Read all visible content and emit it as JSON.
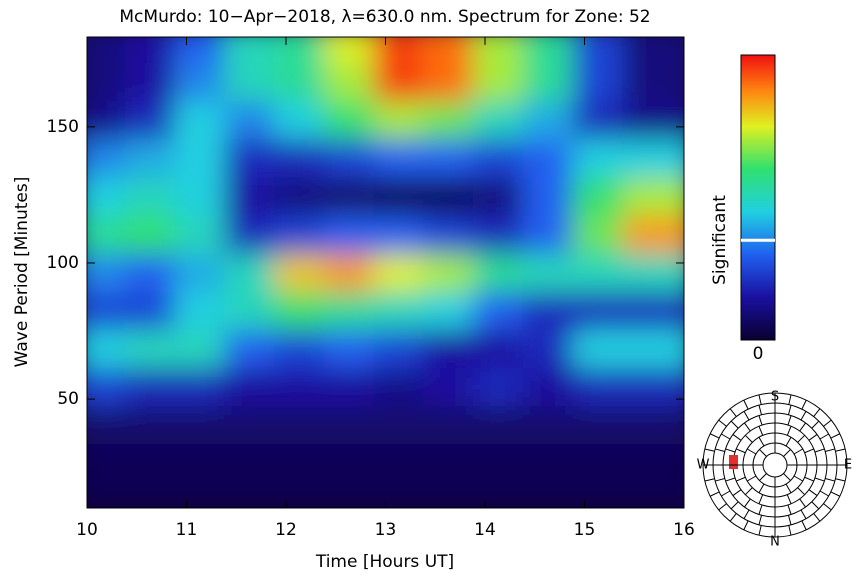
{
  "chart_data": {
    "type": "heatmap",
    "title": "McMurdo: 10−Apr−2018, λ=630.0 nm. Spectrum for Zone: 52",
    "x_label": "Time [Hours UT]",
    "y_label": "Wave Period [Minutes]",
    "x": [
      10.25,
      10.75,
      11.25,
      11.75,
      12.25,
      12.75,
      13.25,
      13.75,
      14.25,
      14.75,
      15.25,
      15.75
    ],
    "y": [
      176,
      162,
      148,
      134,
      120,
      106,
      92,
      78,
      64,
      50,
      36,
      22
    ],
    "z": [
      [
        0.1,
        0.15,
        0.3,
        0.5,
        0.55,
        0.75,
        0.95,
        0.9,
        0.7,
        0.55,
        0.25,
        0.1
      ],
      [
        0.1,
        0.15,
        0.35,
        0.5,
        0.55,
        0.7,
        0.95,
        0.9,
        0.7,
        0.55,
        0.25,
        0.1
      ],
      [
        0.12,
        0.2,
        0.45,
        0.35,
        0.45,
        0.6,
        0.7,
        0.65,
        0.5,
        0.4,
        0.2,
        0.12
      ],
      [
        0.35,
        0.4,
        0.45,
        0.2,
        0.2,
        0.25,
        0.3,
        0.3,
        0.25,
        0.3,
        0.45,
        0.45
      ],
      [
        0.45,
        0.5,
        0.45,
        0.15,
        0.1,
        0.08,
        0.05,
        0.05,
        0.1,
        0.3,
        0.6,
        0.7
      ],
      [
        0.55,
        0.6,
        0.5,
        0.2,
        0.25,
        0.3,
        0.3,
        0.25,
        0.2,
        0.3,
        0.65,
        0.85
      ],
      [
        0.35,
        0.3,
        0.4,
        0.5,
        0.8,
        0.85,
        0.75,
        0.7,
        0.55,
        0.5,
        0.5,
        0.5
      ],
      [
        0.25,
        0.25,
        0.45,
        0.5,
        0.6,
        0.55,
        0.5,
        0.45,
        0.3,
        0.2,
        0.2,
        0.2
      ],
      [
        0.45,
        0.5,
        0.5,
        0.3,
        0.25,
        0.3,
        0.25,
        0.15,
        0.15,
        0.2,
        0.45,
        0.45
      ],
      [
        0.25,
        0.2,
        0.2,
        0.15,
        0.15,
        0.15,
        0.12,
        0.15,
        0.2,
        0.15,
        0.2,
        0.2
      ],
      [
        0.08,
        0.08,
        0.08,
        0.08,
        0.08,
        0.08,
        0.08,
        0.08,
        0.08,
        0.08,
        0.08,
        0.08
      ],
      [
        0.05,
        0.05,
        0.05,
        0.05,
        0.05,
        0.05,
        0.05,
        0.05,
        0.05,
        0.05,
        0.05,
        0.05
      ]
    ],
    "xlim": [
      10,
      16
    ],
    "xticks": [
      10,
      11,
      12,
      13,
      14,
      15,
      16
    ],
    "ylim": [
      10,
      183
    ],
    "yticks": [
      50,
      100,
      150
    ],
    "zlim": [
      0,
      1
    ],
    "zticks": [
      0
    ],
    "colorbar_label": "Significant",
    "significance_level": 0.35,
    "compass": {
      "labels": [
        "S",
        "W",
        "E",
        "N"
      ]
    }
  }
}
